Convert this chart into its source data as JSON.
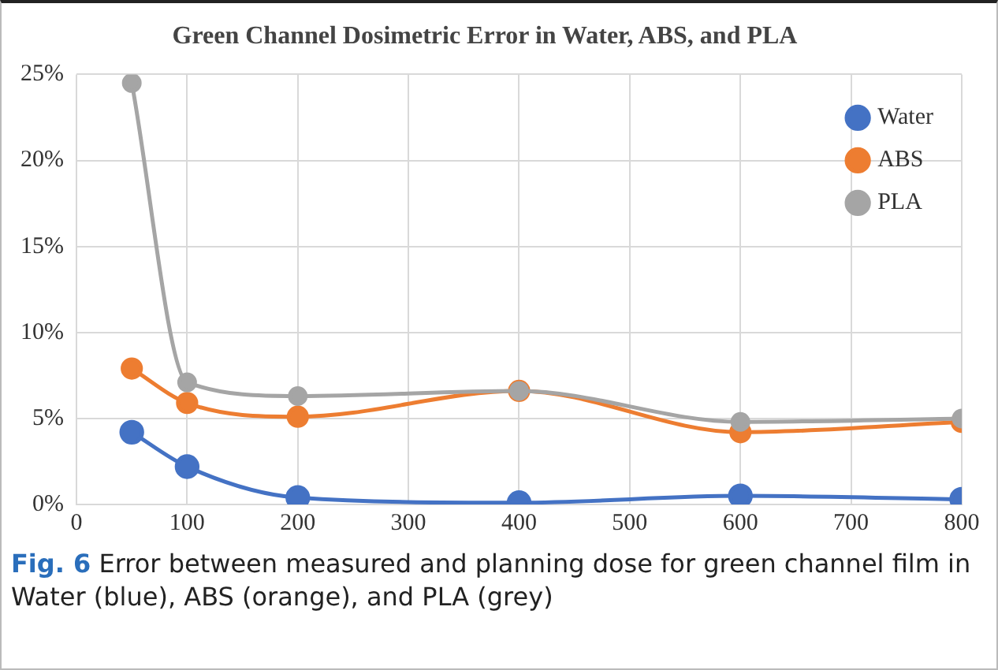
{
  "chart_data": {
    "type": "line",
    "title": "Green Channel Dosimetric Error in Water, ABS, and PLA",
    "x": [
      50,
      100,
      200,
      400,
      600,
      800
    ],
    "series": [
      {
        "name": "Water",
        "color": "#4472c4",
        "values": [
          4.2,
          2.2,
          0.4,
          0.1,
          0.5,
          0.3
        ]
      },
      {
        "name": "ABS",
        "color": "#ed7d31",
        "values": [
          7.9,
          5.9,
          5.1,
          6.6,
          4.2,
          4.8
        ]
      },
      {
        "name": "PLA",
        "color": "#a5a5a5",
        "values": [
          24.5,
          7.1,
          6.3,
          6.6,
          4.8,
          5.0
        ]
      }
    ],
    "xlim": [
      0,
      800
    ],
    "xticks": [
      0,
      100,
      200,
      300,
      400,
      500,
      600,
      700,
      800
    ],
    "ylim": [
      0,
      25
    ],
    "yticks": [
      {
        "value": 0,
        "label": "0%"
      },
      {
        "value": 5,
        "label": "5%"
      },
      {
        "value": 10,
        "label": "10%"
      },
      {
        "value": 15,
        "label": "15%"
      },
      {
        "value": 20,
        "label": "20%"
      },
      {
        "value": 25,
        "label": "25%"
      }
    ],
    "grid": true,
    "legend": "top right",
    "marker": "circle",
    "line_style": "solid",
    "annotations": [
      "Fig. 6 Error between measured and planning dose for green channel film in Water (blue), ABS (orange), and PLA (grey)"
    ]
  }
}
